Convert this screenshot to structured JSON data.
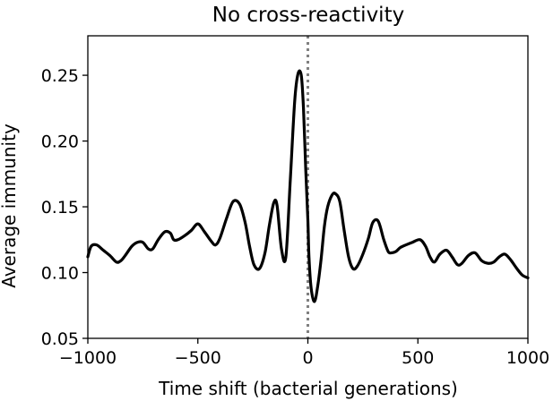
{
  "chart_data": {
    "type": "line",
    "title": "No cross-reactivity",
    "xlabel": "Time shift (bacterial generations)",
    "ylabel": "Average immunity",
    "xlim": [
      -1000,
      1000
    ],
    "ylim": [
      0.05,
      0.28
    ],
    "xticks": [
      -1000,
      -500,
      0,
      500,
      1000
    ],
    "xtick_labels": [
      "−1000",
      "−500",
      "0",
      "500",
      "1000"
    ],
    "yticks": [
      0.05,
      0.1,
      0.15,
      0.2,
      0.25
    ],
    "ytick_labels": [
      "0.05",
      "0.10",
      "0.15",
      "0.20",
      "0.25"
    ],
    "grid": false,
    "reference_line": {
      "x": 0,
      "style": "dotted",
      "color": "#808080"
    },
    "series": [
      {
        "color": "#000000",
        "x": [
          -1000,
          -985,
          -960,
          -930,
          -900,
          -870,
          -850,
          -830,
          -800,
          -775,
          -750,
          -725,
          -705,
          -680,
          -650,
          -625,
          -610,
          -590,
          -560,
          -530,
          -500,
          -470,
          -440,
          -420,
          -400,
          -370,
          -340,
          -310,
          -285,
          -265,
          -245,
          -220,
          -195,
          -175,
          -155,
          -140,
          -120,
          -100,
          -80,
          -60,
          -45,
          -30,
          -20,
          -10,
          0,
          5,
          15,
          30,
          45,
          60,
          75,
          90,
          110,
          125,
          145,
          165,
          185,
          205,
          225,
          250,
          275,
          295,
          320,
          345,
          365,
          380,
          400,
          420,
          445,
          475,
          510,
          535,
          555,
          575,
          600,
          630,
          655,
          680,
          700,
          730,
          760,
          790,
          820,
          845,
          870,
          895,
          920,
          950,
          975,
          1000
        ],
        "y": [
          0.112,
          0.12,
          0.121,
          0.117,
          0.113,
          0.108,
          0.109,
          0.113,
          0.12,
          0.123,
          0.123,
          0.118,
          0.118,
          0.125,
          0.131,
          0.13,
          0.125,
          0.125,
          0.128,
          0.132,
          0.137,
          0.131,
          0.124,
          0.121,
          0.126,
          0.141,
          0.154,
          0.152,
          0.138,
          0.12,
          0.106,
          0.103,
          0.115,
          0.136,
          0.153,
          0.151,
          0.118,
          0.112,
          0.17,
          0.23,
          0.251,
          0.25,
          0.225,
          0.18,
          0.14,
          0.112,
          0.088,
          0.078,
          0.09,
          0.11,
          0.135,
          0.15,
          0.159,
          0.16,
          0.154,
          0.132,
          0.112,
          0.103,
          0.105,
          0.114,
          0.126,
          0.138,
          0.139,
          0.125,
          0.116,
          0.115,
          0.116,
          0.119,
          0.121,
          0.123,
          0.125,
          0.12,
          0.112,
          0.108,
          0.114,
          0.117,
          0.112,
          0.106,
          0.107,
          0.113,
          0.115,
          0.109,
          0.107,
          0.108,
          0.112,
          0.114,
          0.11,
          0.103,
          0.098,
          0.096
        ]
      }
    ]
  }
}
